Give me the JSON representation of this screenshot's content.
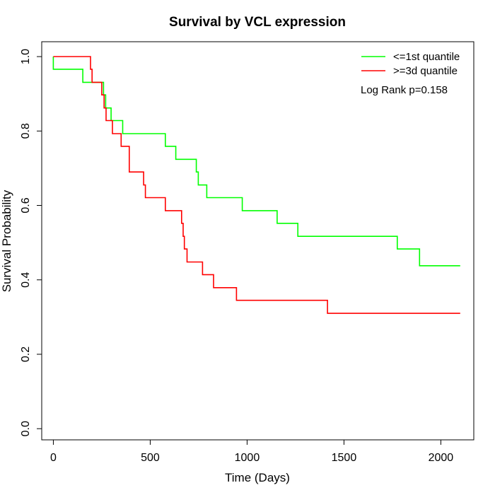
{
  "chart_data": {
    "type": "line",
    "title": "Survival by VCL expression",
    "xlabel": "Time (Days)",
    "ylabel": "Survival Probability",
    "xlim": [
      -60,
      2170
    ],
    "ylim": [
      -0.03,
      1.04
    ],
    "x_ticks": [
      0,
      500,
      1000,
      1500,
      2000
    ],
    "y_ticks": [
      0.0,
      0.2,
      0.4,
      0.6,
      0.8,
      1.0
    ],
    "x_tick_labels": [
      "0",
      "500",
      "1000",
      "1500",
      "2000"
    ],
    "y_tick_labels": [
      "0.0",
      "0.2",
      "0.4",
      "0.6",
      "0.8",
      "1.0"
    ],
    "grid": false,
    "legend_position": "top-right",
    "annotation": "Log Rank p=0.158",
    "series": [
      {
        "name": "<=1st quantile",
        "color": "#00ff00",
        "step_points": [
          [
            0,
            1.0
          ],
          [
            0,
            0.966
          ],
          [
            152,
            0.966
          ],
          [
            152,
            0.931
          ],
          [
            212,
            0.931
          ],
          [
            259,
            0.897
          ],
          [
            270,
            0.862
          ],
          [
            298,
            0.828
          ],
          [
            358,
            0.793
          ],
          [
            578,
            0.759
          ],
          [
            632,
            0.724
          ],
          [
            738,
            0.69
          ],
          [
            748,
            0.655
          ],
          [
            792,
            0.621
          ],
          [
            975,
            0.586
          ],
          [
            1155,
            0.552
          ],
          [
            1262,
            0.517
          ],
          [
            1775,
            0.483
          ],
          [
            1890,
            0.438
          ],
          [
            2100,
            0.438
          ]
        ]
      },
      {
        "name": ">=3d quantile",
        "color": "#ff0000",
        "step_points": [
          [
            0,
            1.0
          ],
          [
            188,
            1.0
          ],
          [
            192,
            0.966
          ],
          [
            200,
            0.931
          ],
          [
            250,
            0.897
          ],
          [
            262,
            0.862
          ],
          [
            272,
            0.828
          ],
          [
            305,
            0.793
          ],
          [
            350,
            0.759
          ],
          [
            392,
            0.69
          ],
          [
            466,
            0.655
          ],
          [
            475,
            0.621
          ],
          [
            578,
            0.586
          ],
          [
            662,
            0.552
          ],
          [
            670,
            0.517
          ],
          [
            676,
            0.483
          ],
          [
            690,
            0.448
          ],
          [
            770,
            0.414
          ],
          [
            827,
            0.379
          ],
          [
            945,
            0.345
          ],
          [
            1415,
            0.31
          ],
          [
            2100,
            0.31
          ]
        ]
      }
    ]
  }
}
